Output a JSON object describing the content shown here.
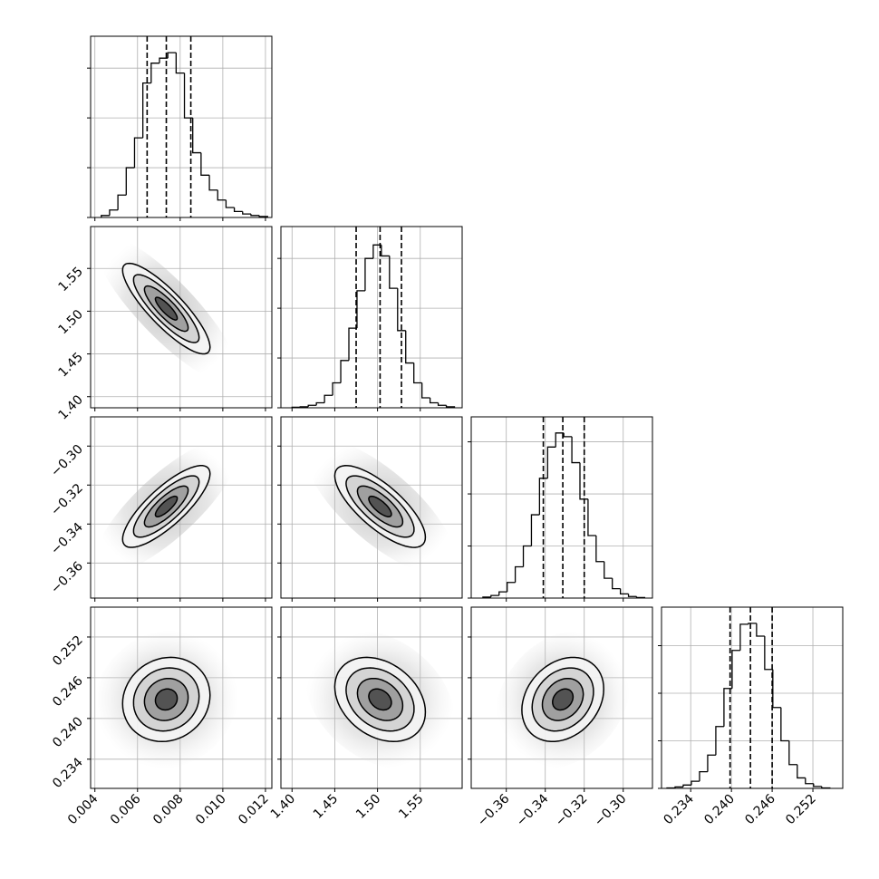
{
  "chart_data": {
    "type": "corner",
    "params": [
      {
        "xlim": [
          0.0038,
          0.0123
        ],
        "xticks": [
          {
            "value": 0.004,
            "label": "0.004"
          },
          {
            "value": 0.006,
            "label": "0.006"
          },
          {
            "value": 0.008,
            "label": "0.008"
          },
          {
            "value": 0.01,
            "label": "0.010"
          },
          {
            "value": 0.012,
            "label": "0.012"
          }
        ],
        "bins": [
          0.0043,
          0.00469,
          0.00508,
          0.00547,
          0.00586,
          0.00625,
          0.00664,
          0.00703,
          0.00742,
          0.00781,
          0.0082,
          0.00859,
          0.00898,
          0.00937,
          0.00976,
          0.01015,
          0.01054,
          0.01093,
          0.01132,
          0.01171,
          0.0121
        ],
        "counts": [
          0.04,
          0.15,
          0.45,
          1.0,
          1.6,
          2.7,
          3.1,
          3.2,
          3.31,
          2.9,
          2.0,
          1.3,
          0.85,
          0.55,
          0.35,
          0.2,
          0.12,
          0.07,
          0.04,
          0.02
        ],
        "hist_ylim": [
          0,
          3.64
        ],
        "hist_yticks": [
          0,
          1,
          2,
          3
        ],
        "quantiles": [
          0.00645,
          0.00735,
          0.0085
        ]
      },
      {
        "xlim": [
          1.387,
          1.599
        ],
        "xticks": [
          {
            "value": 1.4,
            "label": "1.40"
          },
          {
            "value": 1.45,
            "label": "1.45"
          },
          {
            "value": 1.5,
            "label": "1.50"
          },
          {
            "value": 1.55,
            "label": "1.55"
          }
        ],
        "bins": [
          1.4,
          1.4095,
          1.419,
          1.4285,
          1.438,
          1.4475,
          1.457,
          1.4665,
          1.476,
          1.4855,
          1.495,
          1.5045,
          1.514,
          1.5235,
          1.533,
          1.5425,
          1.552,
          1.5615,
          1.571,
          1.5805,
          1.59
        ],
        "counts": [
          0.01,
          0.02,
          0.05,
          0.1,
          0.25,
          0.5,
          0.95,
          1.6,
          2.35,
          3.0,
          3.27,
          3.05,
          2.4,
          1.55,
          0.9,
          0.5,
          0.2,
          0.1,
          0.05,
          0.02
        ],
        "hist_ylim": [
          0,
          3.64
        ],
        "hist_yticks": [
          0,
          1,
          2,
          3
        ],
        "quantiles": [
          1.475,
          1.503,
          1.528
        ]
      },
      {
        "xlim": [
          -0.378,
          -0.285
        ],
        "xticks": [
          {
            "value": -0.36,
            "label": "−0.36"
          },
          {
            "value": -0.34,
            "label": "−0.34"
          },
          {
            "value": -0.32,
            "label": "−0.32"
          },
          {
            "value": -0.3,
            "label": "−0.30"
          }
        ],
        "bins": [
          -0.372,
          -0.36785,
          -0.3637,
          -0.35955,
          -0.3554,
          -0.35125,
          -0.3471,
          -0.34295,
          -0.3388,
          -0.33465,
          -0.3305,
          -0.32635,
          -0.3222,
          -0.31805,
          -0.3139,
          -0.30975,
          -0.3056,
          -0.30145,
          -0.2973,
          -0.29315,
          -0.289
        ],
        "counts": [
          0.02,
          0.05,
          0.12,
          0.3,
          0.6,
          1.0,
          1.6,
          2.3,
          2.9,
          3.17,
          3.1,
          2.6,
          1.9,
          1.2,
          0.7,
          0.38,
          0.18,
          0.08,
          0.03,
          0.01
        ],
        "hist_ylim": [
          0,
          3.48
        ],
        "hist_yticks": [
          0,
          1,
          2,
          3
        ],
        "quantiles": [
          -0.341,
          -0.331,
          -0.32
        ]
      },
      {
        "xlim": [
          0.2297,
          0.2564
        ],
        "xticks": [
          {
            "value": 0.234,
            "label": "0.234"
          },
          {
            "value": 0.24,
            "label": "0.240"
          },
          {
            "value": 0.246,
            "label": "0.246"
          },
          {
            "value": 0.252,
            "label": "0.252"
          }
        ],
        "bins": [
          0.2305,
          0.2317,
          0.2329,
          0.2341,
          0.2353,
          0.2365,
          0.2377,
          0.2389,
          0.2401,
          0.2413,
          0.2425,
          0.2437,
          0.2449,
          0.2461,
          0.2473,
          0.2485,
          0.2497,
          0.2509,
          0.2521,
          0.2533,
          0.2545
        ],
        "counts": [
          0.01,
          0.03,
          0.07,
          0.15,
          0.35,
          0.7,
          1.3,
          2.1,
          2.9,
          3.45,
          3.47,
          3.2,
          2.5,
          1.7,
          1.0,
          0.5,
          0.22,
          0.1,
          0.04,
          0.01
        ],
        "hist_ylim": [
          0,
          3.81
        ],
        "hist_yticks": [
          0,
          1,
          2,
          3
        ],
        "quantiles": [
          0.2398,
          0.2428,
          0.246
        ]
      }
    ],
    "correlations": [
      -0.85,
      0.8,
      -0.75,
      0.1,
      -0.3,
      0.25
    ],
    "grid": true
  }
}
